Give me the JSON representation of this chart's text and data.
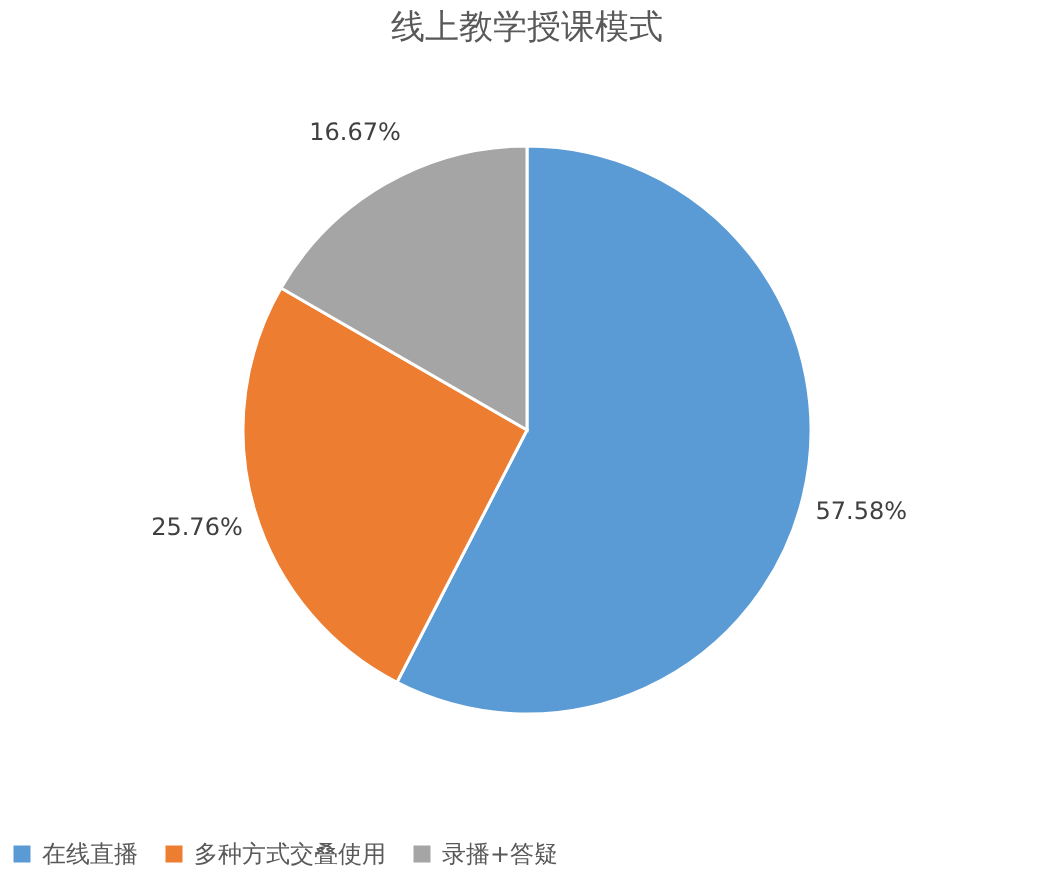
{
  "chart_data": {
    "type": "pie",
    "title": "线上教学授课模式",
    "categories": [
      "在线直播",
      "多种方式交叠使用",
      "录播+答疑"
    ],
    "values": [
      57.58,
      25.76,
      16.67
    ],
    "colors": [
      "#5b9bd5",
      "#ed7d31",
      "#a5a5a5"
    ],
    "value_labels": [
      "57.58%",
      "25.76%",
      "16.67%"
    ],
    "legend": "bottom"
  }
}
